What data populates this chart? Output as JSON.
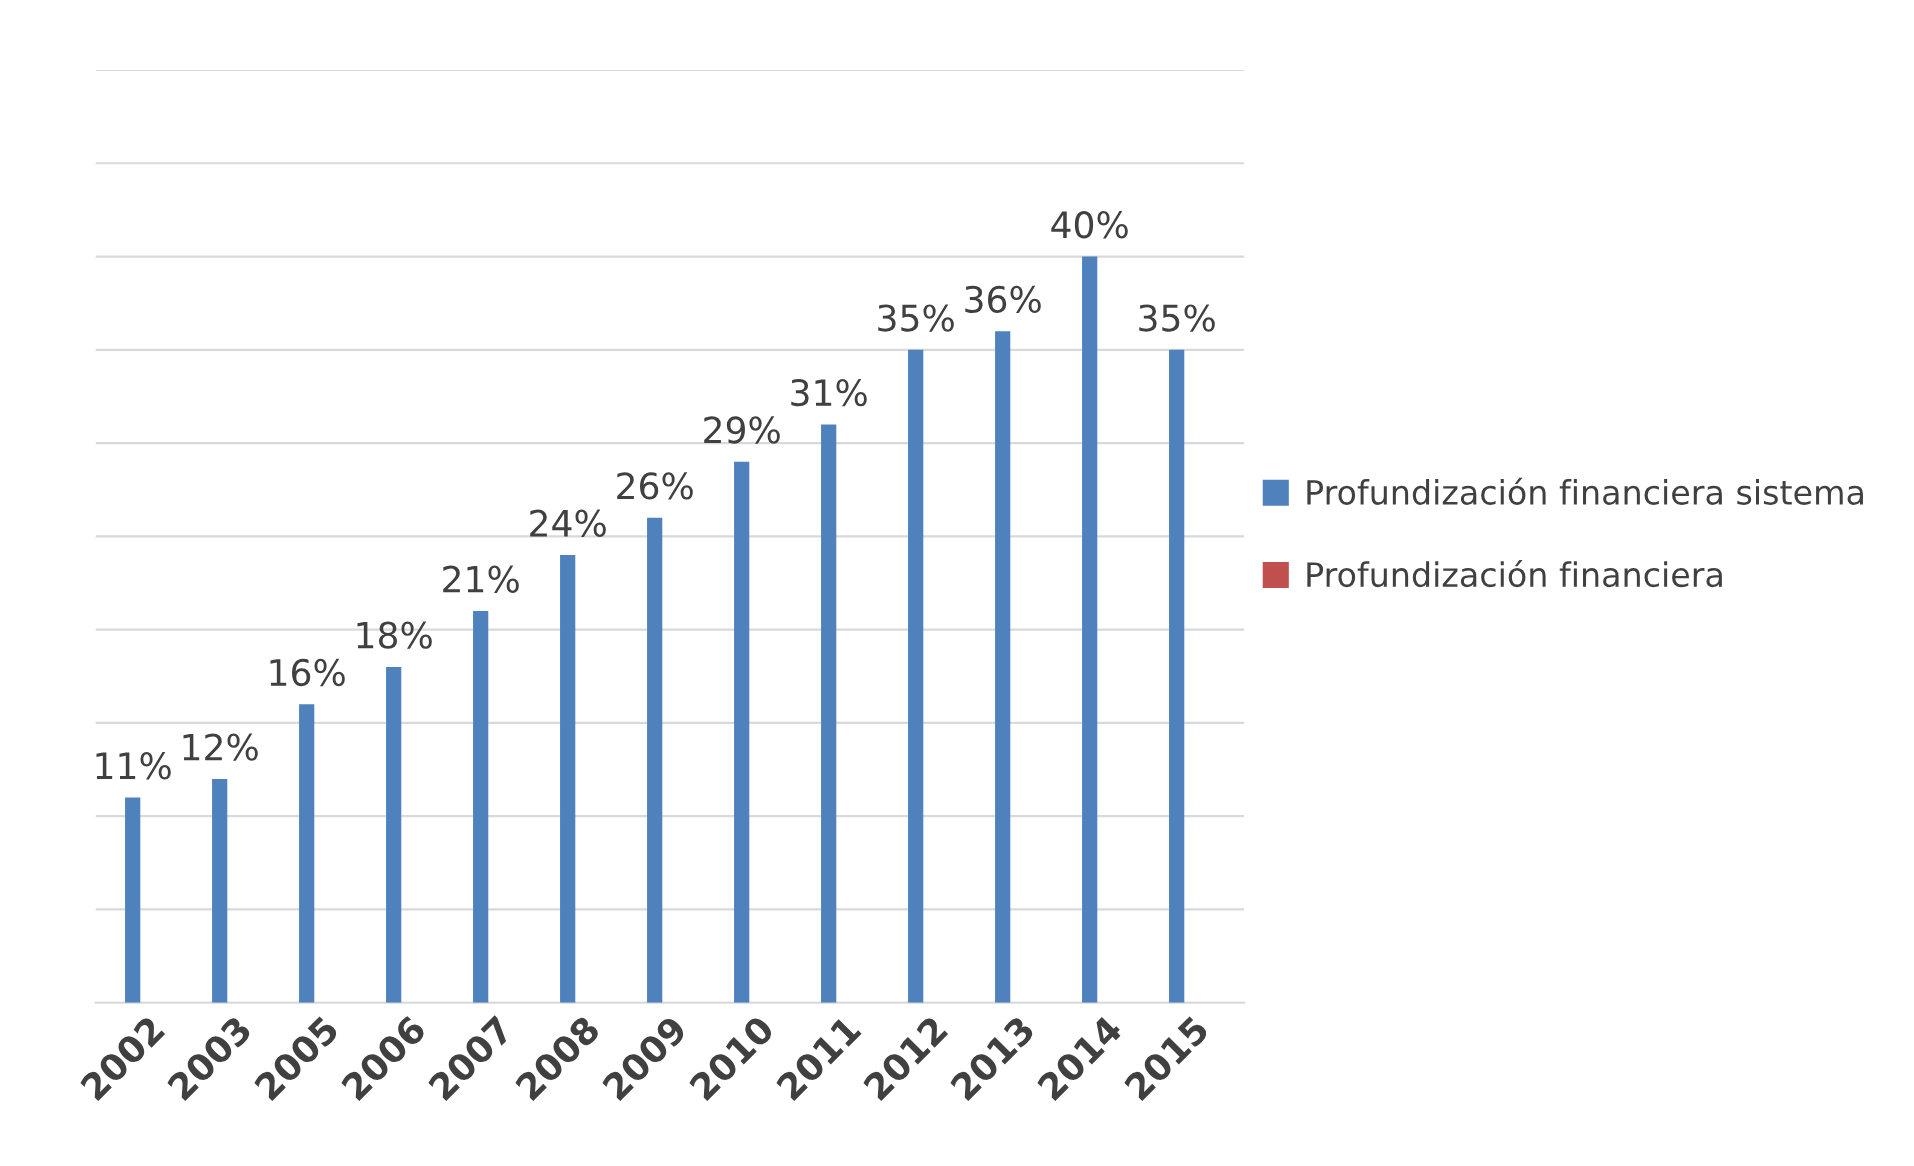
{
  "chart_data": {
    "type": "bar",
    "categories": [
      "2002",
      "2003",
      "2005",
      "2006",
      "2007",
      "2008",
      "2009",
      "2010",
      "2011",
      "2012",
      "2013",
      "2014",
      "2015"
    ],
    "series": [
      {
        "name": "Profundización financiera sistema",
        "color": "#4f81bd",
        "values": [
          11,
          12,
          16,
          18,
          21,
          24,
          26,
          29,
          31,
          35,
          36,
          40,
          35
        ],
        "value_labels": [
          "11%",
          "12%",
          "16%",
          "18%",
          "21%",
          "24%",
          "26%",
          "29%",
          "31%",
          "35%",
          "36%",
          "40%",
          "35%"
        ]
      },
      {
        "name": "Profundización financiera",
        "color": "#c0504d",
        "values": [
          null,
          null,
          null,
          null,
          null,
          null,
          null,
          null,
          null,
          null,
          null,
          null,
          null
        ]
      }
    ],
    "ylim": [
      0,
      50
    ],
    "yticks": [
      {
        "value": 0,
        "label": null
      },
      {
        "value": 5,
        "label": null
      },
      {
        "value": 10,
        "label": null
      },
      {
        "value": 15,
        "label": null
      },
      {
        "value": 20,
        "label": null
      },
      {
        "value": 25,
        "label": null
      },
      {
        "value": 30,
        "label": null
      },
      {
        "value": 35,
        "label": null
      },
      {
        "value": 40,
        "label": null
      },
      {
        "value": 45,
        "label": null
      },
      {
        "value": 50,
        "label": null
      }
    ],
    "tick_labels": "x",
    "grid": "y",
    "legend": "right"
  }
}
